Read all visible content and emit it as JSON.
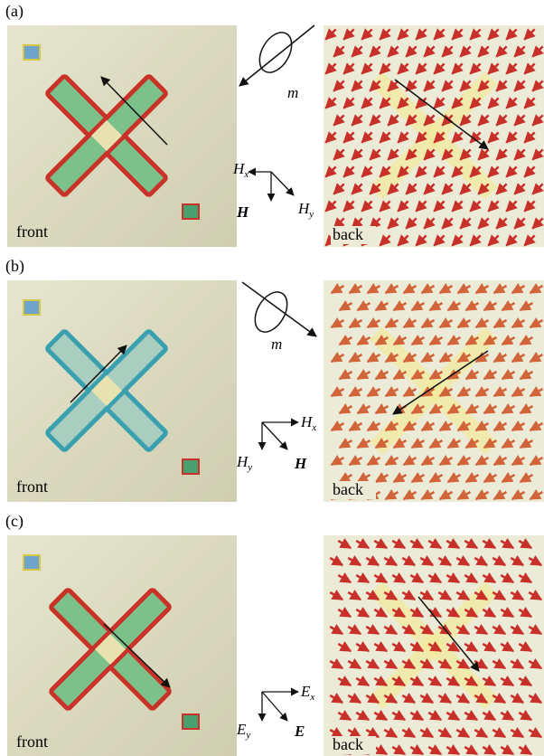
{
  "panels": [
    {
      "label": "(a)",
      "front": "front",
      "back": "back",
      "moment": "m",
      "axes": [
        {
          "main": "H",
          "sub": "x"
        },
        {
          "main": "H",
          "sub": "y"
        },
        {
          "main": "H",
          "sub": ""
        }
      ]
    },
    {
      "label": "(b)",
      "front": "front",
      "back": "back",
      "moment": "m",
      "axes": [
        {
          "main": "H",
          "sub": "x"
        },
        {
          "main": "H",
          "sub": "y"
        },
        {
          "main": "H",
          "sub": ""
        }
      ]
    },
    {
      "label": "(c)",
      "front": "front",
      "back": "back",
      "axes": [
        {
          "main": "E",
          "sub": "x"
        },
        {
          "main": "E",
          "sub": "y"
        },
        {
          "main": "E",
          "sub": ""
        }
      ]
    }
  ]
}
